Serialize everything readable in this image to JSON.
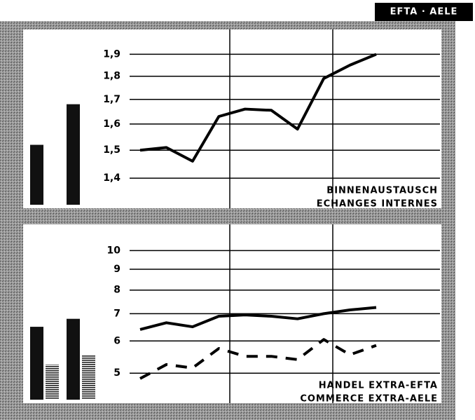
{
  "badge": "EFTA · AELE",
  "chart_data": [
    {
      "type": "line",
      "log_scale": true,
      "grid": true,
      "ylim": [
        1.3,
        2.02
      ],
      "yticks": [
        {
          "value": 1.4,
          "label": "1,4"
        },
        {
          "value": 1.5,
          "label": "1,5"
        },
        {
          "value": 1.6,
          "label": "1,6"
        },
        {
          "value": 1.7,
          "label": "1,7"
        },
        {
          "value": 1.8,
          "label": "1,8"
        },
        {
          "value": 1.9,
          "label": "1,9"
        }
      ],
      "categories": [
        null,
        null,
        null,
        null,
        null,
        null,
        null,
        null,
        null,
        null
      ],
      "series": [
        {
          "color": "#000",
          "values": [
            1.5,
            1.51,
            1.46,
            1.63,
            1.66,
            1.655,
            1.58,
            1.79,
            1.85,
            1.9
          ]
        }
      ],
      "bar_series": [
        {
          "color": "#111",
          "values": [
            1.52,
            1.68
          ]
        }
      ],
      "annotation": [
        "BINNENAUSTAUSCH",
        "ECHANGES INTERNES"
      ]
    },
    {
      "type": "line",
      "log_scale": true,
      "grid": true,
      "ylim": [
        4.22,
        11.6
      ],
      "yticks": [
        5,
        6,
        7,
        8,
        9,
        10
      ],
      "categories": [
        null,
        null,
        null,
        null,
        null,
        null,
        null,
        null,
        null,
        null
      ],
      "series": [
        {
          "color": "#000",
          "values": [
            6.4,
            6.65,
            6.5,
            6.9,
            6.95,
            6.9,
            6.8,
            7.0,
            7.15,
            7.25
          ]
        },
        {
          "color": "#000",
          "dash": true,
          "values": [
            4.85,
            5.25,
            5.15,
            5.75,
            5.5,
            5.5,
            5.4,
            6.05,
            5.55,
            5.85
          ]
        }
      ],
      "bar_series": [
        {
          "color": "#111",
          "values": [
            6.5,
            6.8
          ]
        },
        {
          "color": "#222",
          "hatch": true,
          "values": [
            5.25,
            5.55
          ]
        }
      ],
      "annotation": [
        "HANDEL EXTRA-EFTA",
        "COMMERCE EXTRA-AELE"
      ]
    }
  ]
}
